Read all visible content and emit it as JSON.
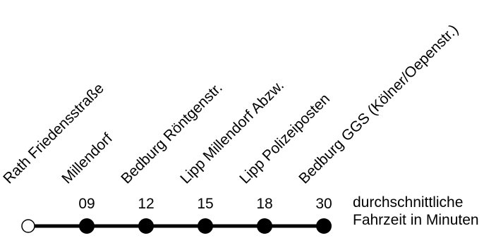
{
  "route": {
    "line_color": "#000000",
    "stops": [
      {
        "name": "Rath Friedensstraße",
        "time": "",
        "marker": "open"
      },
      {
        "name": "Millendorf",
        "time": "09",
        "marker": "filled"
      },
      {
        "name": "Bedburg Röntgenstr.",
        "time": "12",
        "marker": "filled"
      },
      {
        "name": "Lipp Millendorf Abzw.",
        "time": "15",
        "marker": "filled"
      },
      {
        "name": "Lipp Polizeiposten",
        "time": "18",
        "marker": "filled"
      },
      {
        "name": "Bedburg GGS (Kölner/Oepenstr.)",
        "time": "30",
        "marker": "filled"
      }
    ]
  },
  "legend": {
    "line1": "durchschnittliche",
    "line2": "Fahrzeit in Minuten"
  }
}
